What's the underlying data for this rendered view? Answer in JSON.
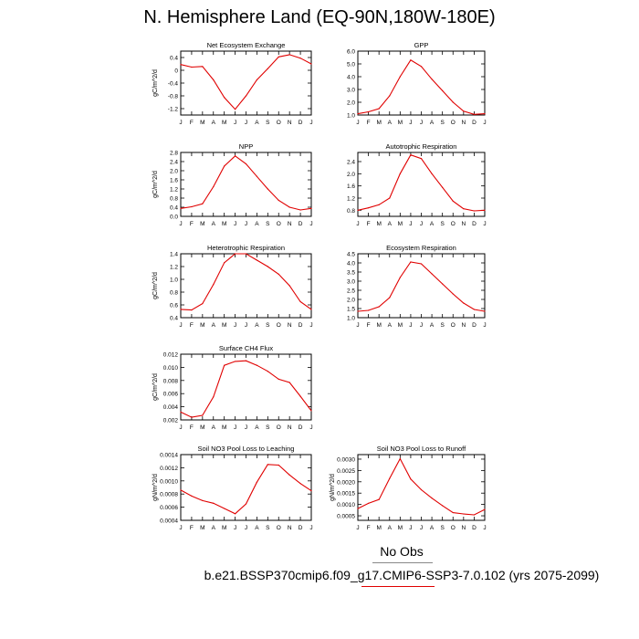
{
  "page": {
    "title": "N. Hemisphere Land (EQ-90N,180W-180E)",
    "legend_obs_label": "No Obs",
    "legend_case_label": "b.e21.BSSP370cmip6.f09_g17.CMIP6-SSP3-7.0.102 (yrs 2075-2099)",
    "series_color": "#e00000",
    "obs_line_color": "#888888"
  },
  "chart_data": [
    {
      "type": "line",
      "title": "Net Ecosystem Exchange",
      "ylabel": "gC/m^2/d",
      "x": [
        "J",
        "F",
        "M",
        "A",
        "M",
        "J",
        "J",
        "A",
        "S",
        "O",
        "N",
        "D",
        "J"
      ],
      "yticks": [
        0.4,
        0.0,
        -0.4,
        -0.8,
        -1.2
      ],
      "ytick_labels": [
        "0.4",
        "0",
        "-0.4",
        "-0.8",
        "-1.2"
      ],
      "ylim": [
        -1.4,
        0.6
      ],
      "values": [
        0.18,
        0.1,
        0.12,
        -0.3,
        -0.85,
        -1.22,
        -0.8,
        -0.3,
        0.05,
        0.42,
        0.49,
        0.38,
        0.2
      ]
    },
    {
      "type": "line",
      "title": "GPP",
      "ylabel": "",
      "x": [
        "J",
        "F",
        "M",
        "A",
        "M",
        "J",
        "J",
        "A",
        "S",
        "O",
        "N",
        "D",
        "J"
      ],
      "yticks": [
        1.0,
        2.0,
        3.0,
        4.0,
        5.0,
        6.0
      ],
      "ytick_labels": [
        "1.0",
        "2.0",
        "3.0",
        "4.0",
        "5.0",
        "6.0"
      ],
      "ylim": [
        1.0,
        6.0
      ],
      "values": [
        1.1,
        1.25,
        1.5,
        2.5,
        4.0,
        5.3,
        4.8,
        3.8,
        2.9,
        2.0,
        1.3,
        1.05,
        1.1
      ]
    },
    {
      "type": "line",
      "title": "NPP",
      "ylabel": "gC/m^2/d",
      "x": [
        "J",
        "F",
        "M",
        "A",
        "M",
        "J",
        "J",
        "A",
        "S",
        "O",
        "N",
        "D",
        "J"
      ],
      "yticks": [
        0.0,
        0.4,
        0.8,
        1.2,
        1.6,
        2.0,
        2.4,
        2.8
      ],
      "ytick_labels": [
        "0.0",
        "0.4",
        "0.8",
        "1.2",
        "1.6",
        "2.0",
        "2.4",
        "2.8"
      ],
      "ylim": [
        0.0,
        2.8
      ],
      "values": [
        0.35,
        0.42,
        0.55,
        1.3,
        2.2,
        2.65,
        2.3,
        1.75,
        1.2,
        0.7,
        0.4,
        0.28,
        0.35
      ]
    },
    {
      "type": "line",
      "title": "Autotrophic Respiration",
      "ylabel": "",
      "x": [
        "J",
        "F",
        "M",
        "A",
        "M",
        "J",
        "J",
        "A",
        "S",
        "O",
        "N",
        "D",
        "J"
      ],
      "yticks": [
        0.8,
        1.2,
        1.6,
        2.0,
        2.4
      ],
      "ytick_labels": [
        "0.8",
        "1.2",
        "1.6",
        "2.0",
        "2.4"
      ],
      "ylim": [
        0.6,
        2.7
      ],
      "values": [
        0.8,
        0.88,
        0.98,
        1.2,
        2.0,
        2.62,
        2.5,
        2.0,
        1.55,
        1.1,
        0.85,
        0.78,
        0.8
      ]
    },
    {
      "type": "line",
      "title": "Heterotrophic Respiration",
      "ylabel": "gC/m^2/d",
      "x": [
        "J",
        "F",
        "M",
        "A",
        "M",
        "J",
        "J",
        "A",
        "S",
        "O",
        "N",
        "D",
        "J"
      ],
      "yticks": [
        0.4,
        0.6,
        0.8,
        1.0,
        1.2,
        1.4
      ],
      "ytick_labels": [
        "0.4",
        "0.6",
        "0.8",
        "1.0",
        "1.2",
        "1.4"
      ],
      "ylim": [
        0.4,
        1.4
      ],
      "values": [
        0.53,
        0.52,
        0.62,
        0.92,
        1.26,
        1.4,
        1.4,
        1.3,
        1.2,
        1.08,
        0.9,
        0.65,
        0.53
      ]
    },
    {
      "type": "line",
      "title": "Ecosystem Respiration",
      "ylabel": "",
      "x": [
        "J",
        "F",
        "M",
        "A",
        "M",
        "J",
        "J",
        "A",
        "S",
        "O",
        "N",
        "D",
        "J"
      ],
      "yticks": [
        1.0,
        1.5,
        2.0,
        2.5,
        3.0,
        3.5,
        4.0,
        4.5
      ],
      "ytick_labels": [
        "1.0",
        "1.5",
        "2.0",
        "2.5",
        "3.0",
        "3.5",
        "4.0",
        "4.5"
      ],
      "ylim": [
        1.0,
        4.5
      ],
      "values": [
        1.35,
        1.4,
        1.6,
        2.1,
        3.2,
        4.05,
        3.95,
        3.4,
        2.85,
        2.3,
        1.8,
        1.45,
        1.35
      ]
    },
    {
      "type": "line",
      "title": "Surface CH4 Flux",
      "ylabel": "gC/m^2/d",
      "x": [
        "J",
        "F",
        "M",
        "A",
        "M",
        "J",
        "J",
        "A",
        "S",
        "O",
        "N",
        "D",
        "J"
      ],
      "yticks": [
        0.002,
        0.004,
        0.006,
        0.008,
        0.01,
        0.012
      ],
      "ytick_labels": [
        "0.002",
        "0.004",
        "0.006",
        "0.008",
        "0.010",
        "0.012"
      ],
      "ylim": [
        0.002,
        0.012
      ],
      "values": [
        0.0032,
        0.0024,
        0.0027,
        0.0055,
        0.0103,
        0.0109,
        0.011,
        0.0103,
        0.0094,
        0.0082,
        0.0077,
        0.0056,
        0.0034
      ]
    },
    {
      "type": "line",
      "title": "Soil NO3 Pool Loss to Leaching",
      "ylabel": "gN/m^2/d",
      "x": [
        "J",
        "F",
        "M",
        "A",
        "M",
        "J",
        "J",
        "A",
        "S",
        "O",
        "N",
        "D",
        "J"
      ],
      "yticks": [
        0.0004,
        0.0006,
        0.0008,
        0.001,
        0.0012,
        0.0014
      ],
      "ytick_labels": [
        "0.0004",
        "0.0006",
        "0.0008",
        "0.0010",
        "0.0012",
        "0.0014"
      ],
      "ylim": [
        0.0004,
        0.0014
      ],
      "values": [
        0.00086,
        0.00077,
        0.0007,
        0.00066,
        0.00058,
        0.0005,
        0.00065,
        0.00098,
        0.00125,
        0.00124,
        0.00109,
        0.00096,
        0.00085
      ]
    },
    {
      "type": "line",
      "title": "Soil NO3 Pool Loss to Runoff",
      "ylabel": "gN/m^2/d",
      "x": [
        "J",
        "F",
        "M",
        "A",
        "M",
        "J",
        "J",
        "A",
        "S",
        "O",
        "N",
        "D",
        "J"
      ],
      "yticks": [
        0.0005,
        0.001,
        0.0015,
        0.002,
        0.0025,
        0.003
      ],
      "ytick_labels": [
        "0.0005",
        "0.0010",
        "0.0015",
        "0.0020",
        "0.0025",
        "0.0030"
      ],
      "ylim": [
        0.0003,
        0.0032
      ],
      "values": [
        0.00082,
        0.00105,
        0.00122,
        0.00215,
        0.00302,
        0.00212,
        0.00165,
        0.00128,
        0.00095,
        0.00064,
        0.00058,
        0.00054,
        0.00078
      ]
    }
  ]
}
